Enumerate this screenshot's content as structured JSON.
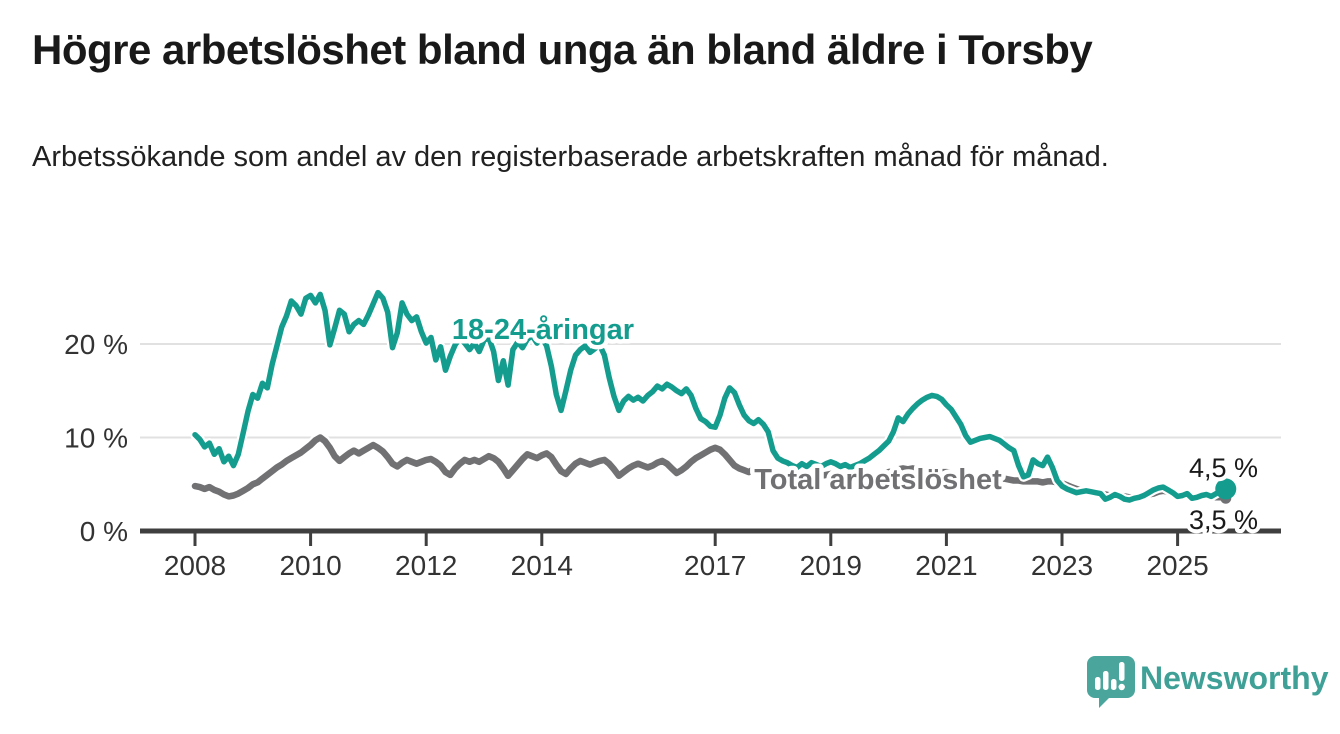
{
  "header": {
    "title": "Högre arbetslöshet bland unga än bland äldre i Torsby",
    "subtitle": "Arbetssökande som andel av den registerbaserade arbetskraften månad för månad."
  },
  "chart_data": {
    "type": "line",
    "title": "Högre arbetslöshet bland unga än bland äldre i Torsby",
    "xlabel": "",
    "ylabel": "Arbetssökande som andel av den registerbaserade arbetskraften",
    "grid": "horizontal",
    "legend_position": "inline-labels",
    "xlim": [
      2007.0,
      2026.8
    ],
    "ylim": [
      0,
      27
    ],
    "x_ticks": [
      {
        "t": 2008,
        "label": "2008"
      },
      {
        "t": 2010,
        "label": "2010"
      },
      {
        "t": 2012,
        "label": "2012"
      },
      {
        "t": 2014,
        "label": "2014"
      },
      {
        "t": 2017,
        "label": "2017"
      },
      {
        "t": 2019,
        "label": "2019"
      },
      {
        "t": 2021,
        "label": "2021"
      },
      {
        "t": 2023,
        "label": "2023"
      },
      {
        "t": 2025,
        "label": "2025"
      }
    ],
    "y_ticks": [
      {
        "v": 0,
        "label": "0 %"
      },
      {
        "v": 10,
        "label": "10 %"
      },
      {
        "v": 20,
        "label": "20 %"
      }
    ],
    "series": [
      {
        "name": "18-24-åringar",
        "color": "#149d8f",
        "start_year": 2008,
        "step_months": 1,
        "end_value_label": "4,5 %",
        "values": [
          10.3,
          9.8,
          9.0,
          9.4,
          8.2,
          8.8,
          7.4,
          8.0,
          7.0,
          8.2,
          10.5,
          12.8,
          14.6,
          14.2,
          15.8,
          15.3,
          17.8,
          19.8,
          21.8,
          23.0,
          24.6,
          24.1,
          23.2,
          24.9,
          25.2,
          24.4,
          25.3,
          23.6,
          19.9,
          21.7,
          23.6,
          23.2,
          21.3,
          22.1,
          22.5,
          22.1,
          23.1,
          24.3,
          25.5,
          24.9,
          23.4,
          19.6,
          21.2,
          24.4,
          23.2,
          22.5,
          22.9,
          21.3,
          20.1,
          20.7,
          18.3,
          19.7,
          17.2,
          18.7,
          19.9,
          20.6,
          20.1,
          19.4,
          20.1,
          19.2,
          20.4,
          20.7,
          19.2,
          16.1,
          18.2,
          15.6,
          19.4,
          20.2,
          19.6,
          20.5,
          20.9,
          20.1,
          20.7,
          19.8,
          17.6,
          14.6,
          12.9,
          15.0,
          17.2,
          18.8,
          19.4,
          19.8,
          19.1,
          19.5,
          19.9,
          18.8,
          16.4,
          14.4,
          12.9,
          13.9,
          14.4,
          14.0,
          14.3,
          13.9,
          14.5,
          14.9,
          15.5,
          15.2,
          15.7,
          15.4,
          15.0,
          14.7,
          15.2,
          14.5,
          13.1,
          12.0,
          11.7,
          11.2,
          11.1,
          12.4,
          14.2,
          15.3,
          14.8,
          13.5,
          12.4,
          11.8,
          11.5,
          11.9,
          11.4,
          10.6,
          8.6,
          7.8,
          7.5,
          7.3,
          7.0,
          6.8,
          7.2,
          6.9,
          7.3,
          7.1,
          6.9,
          7.2,
          7.4,
          7.2,
          6.9,
          7.1,
          6.8,
          7.0,
          7.2,
          7.5,
          7.8,
          8.2,
          8.6,
          9.1,
          9.6,
          10.6,
          12.1,
          11.7,
          12.5,
          13.1,
          13.6,
          14.0,
          14.3,
          14.5,
          14.4,
          14.1,
          13.5,
          13.0,
          12.2,
          11.4,
          10.2,
          9.5,
          9.7,
          9.9,
          10.0,
          10.1,
          9.9,
          9.7,
          9.3,
          8.9,
          8.6,
          7.0,
          5.8,
          6.0,
          7.6,
          7.2,
          7.0,
          7.9,
          6.8,
          5.4,
          4.8,
          4.5,
          4.3,
          4.1,
          4.2,
          4.3,
          4.2,
          4.1,
          4.0,
          3.4,
          3.6,
          3.9,
          3.7,
          3.4,
          3.3,
          3.5,
          3.6,
          3.8,
          4.1,
          4.4,
          4.6,
          4.7,
          4.4,
          4.1,
          3.7,
          3.8,
          4.0,
          3.5,
          3.6,
          3.8,
          3.9,
          3.7,
          4.0,
          4.3,
          4.5
        ]
      },
      {
        "name": "Total arbetslöshet",
        "color": "#717174",
        "start_year": 2008,
        "step_months": 1,
        "end_value_label": "3,5 %",
        "values": [
          4.8,
          4.7,
          4.5,
          4.7,
          4.4,
          4.2,
          3.9,
          3.7,
          3.8,
          4.0,
          4.3,
          4.6,
          5.0,
          5.2,
          5.6,
          6.0,
          6.4,
          6.8,
          7.1,
          7.5,
          7.8,
          8.1,
          8.4,
          8.8,
          9.2,
          9.7,
          10.0,
          9.6,
          8.9,
          8.0,
          7.5,
          7.9,
          8.3,
          8.6,
          8.3,
          8.6,
          8.9,
          9.2,
          8.9,
          8.5,
          7.9,
          7.2,
          6.9,
          7.3,
          7.6,
          7.4,
          7.2,
          7.4,
          7.6,
          7.7,
          7.4,
          7.0,
          6.3,
          6.0,
          6.7,
          7.2,
          7.6,
          7.4,
          7.6,
          7.4,
          7.7,
          8.0,
          7.8,
          7.4,
          6.7,
          5.9,
          6.5,
          7.1,
          7.7,
          8.2,
          8.0,
          7.8,
          8.1,
          8.3,
          7.9,
          7.1,
          6.4,
          6.1,
          6.7,
          7.2,
          7.5,
          7.3,
          7.1,
          7.3,
          7.5,
          7.6,
          7.2,
          6.6,
          5.9,
          6.3,
          6.7,
          7.0,
          7.2,
          7.0,
          6.8,
          7.0,
          7.3,
          7.5,
          7.2,
          6.7,
          6.2,
          6.5,
          6.9,
          7.4,
          7.8,
          8.1,
          8.4,
          8.7,
          8.9,
          8.7,
          8.2,
          7.6,
          7.0,
          6.7,
          6.5,
          6.3,
          6.6,
          6.4,
          6.2,
          6.1,
          6.3,
          6.1,
          5.9,
          5.7,
          5.6,
          5.5,
          5.6,
          5.8,
          5.9,
          6.0,
          5.9,
          6.0,
          6.1,
          6.0,
          5.8,
          5.7,
          5.6,
          5.7,
          5.6,
          5.7,
          5.8,
          5.9,
          6.0,
          6.1,
          6.3,
          6.4,
          6.6,
          6.7,
          6.6,
          6.7,
          6.6,
          6.5,
          6.6,
          6.5,
          6.4,
          6.3,
          6.3,
          6.2,
          6.1,
          6.0,
          5.9,
          5.8,
          5.8,
          5.7,
          5.7,
          5.7,
          5.6,
          5.6,
          5.6,
          5.5,
          5.4,
          5.4,
          5.3,
          5.3,
          5.3,
          5.3,
          5.2,
          5.3,
          5.3,
          5.2,
          5.1,
          4.9,
          4.7,
          4.5,
          4.3,
          4.2,
          4.2,
          4.1,
          4.0,
          3.9,
          3.8,
          3.9,
          3.8,
          3.7,
          3.6,
          3.6,
          3.7,
          3.8,
          3.9,
          4.0,
          4.2,
          4.3,
          4.2,
          4.0,
          3.9,
          3.8,
          3.7,
          3.6,
          3.7,
          3.8,
          3.8,
          3.7,
          3.6,
          3.6,
          3.5
        ]
      }
    ],
    "colors": {
      "grid": "#e1e1e1",
      "axis": "#3f3f3f",
      "tick_text": "#333333",
      "annotation_text": "#1a1a1a",
      "background": "#ffffff"
    }
  },
  "branding": {
    "name": "Newsworthy",
    "color": "#3ea096",
    "icon": "speech-bubble-bar-chart"
  }
}
